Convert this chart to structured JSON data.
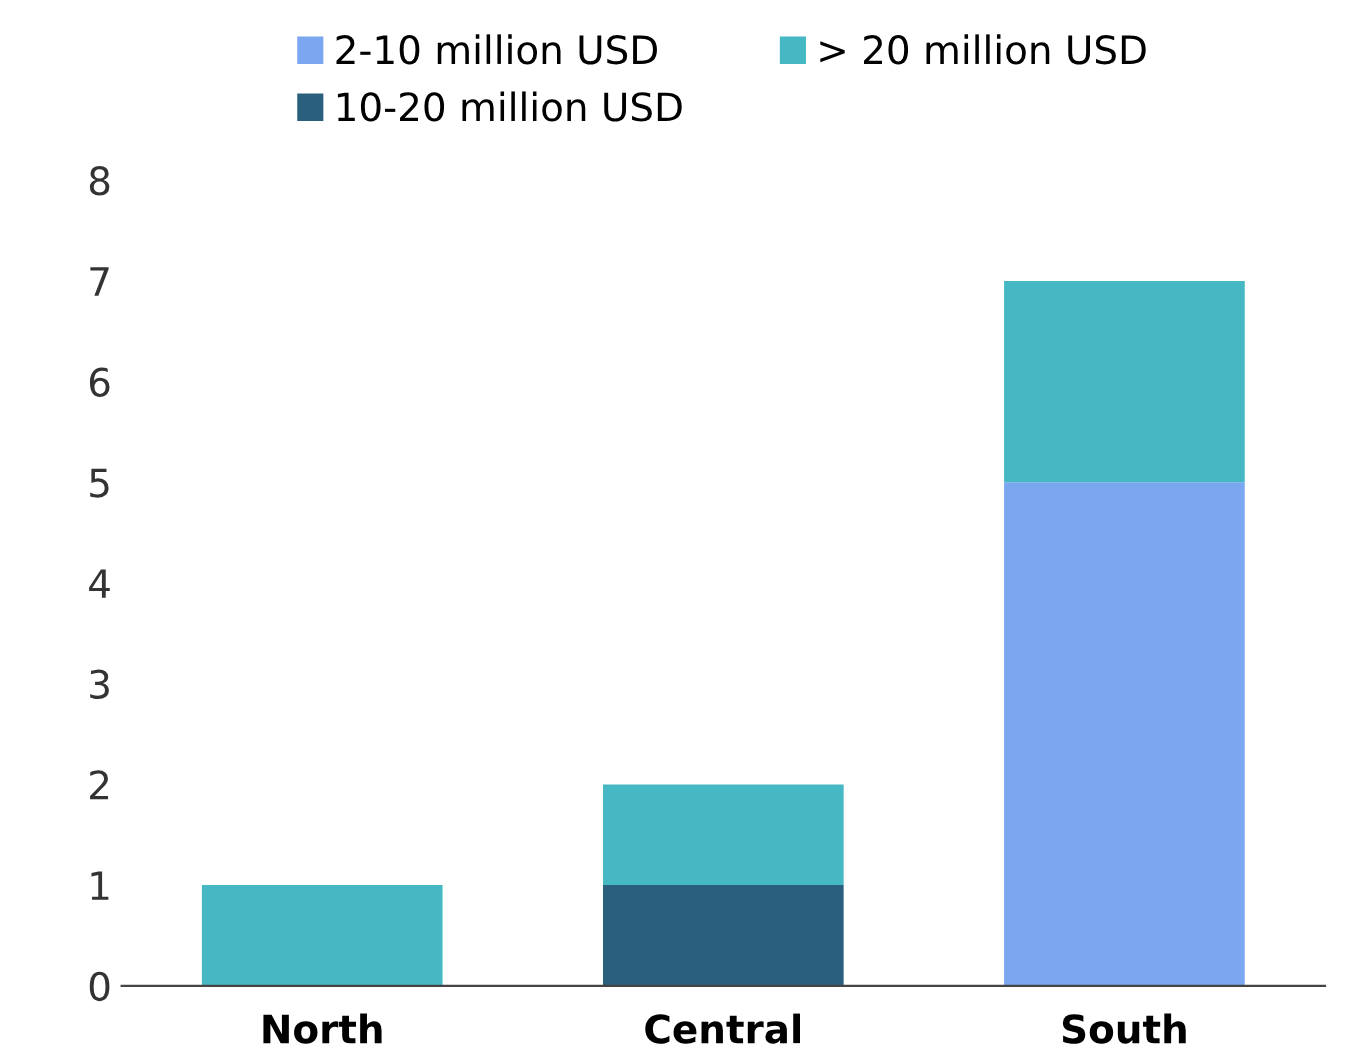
{
  "chart_data": {
    "type": "bar",
    "stacked": true,
    "categories": [
      "North",
      "Central",
      "South"
    ],
    "series": [
      {
        "name": "2-10 million USD",
        "color": "#7ba7f0",
        "values": [
          0,
          0,
          5
        ]
      },
      {
        "name": "10-20 million USD",
        "color": "#2a5f7e",
        "values": [
          0,
          1,
          0
        ]
      },
      {
        "name": "> 20 million USD",
        "color": "#45b8c3",
        "values": [
          1,
          1,
          2
        ]
      }
    ],
    "ylim": [
      0,
      8
    ],
    "yticks": [
      0,
      1,
      2,
      3,
      4,
      5,
      6,
      7,
      8
    ],
    "grid": false,
    "legend": "top"
  }
}
